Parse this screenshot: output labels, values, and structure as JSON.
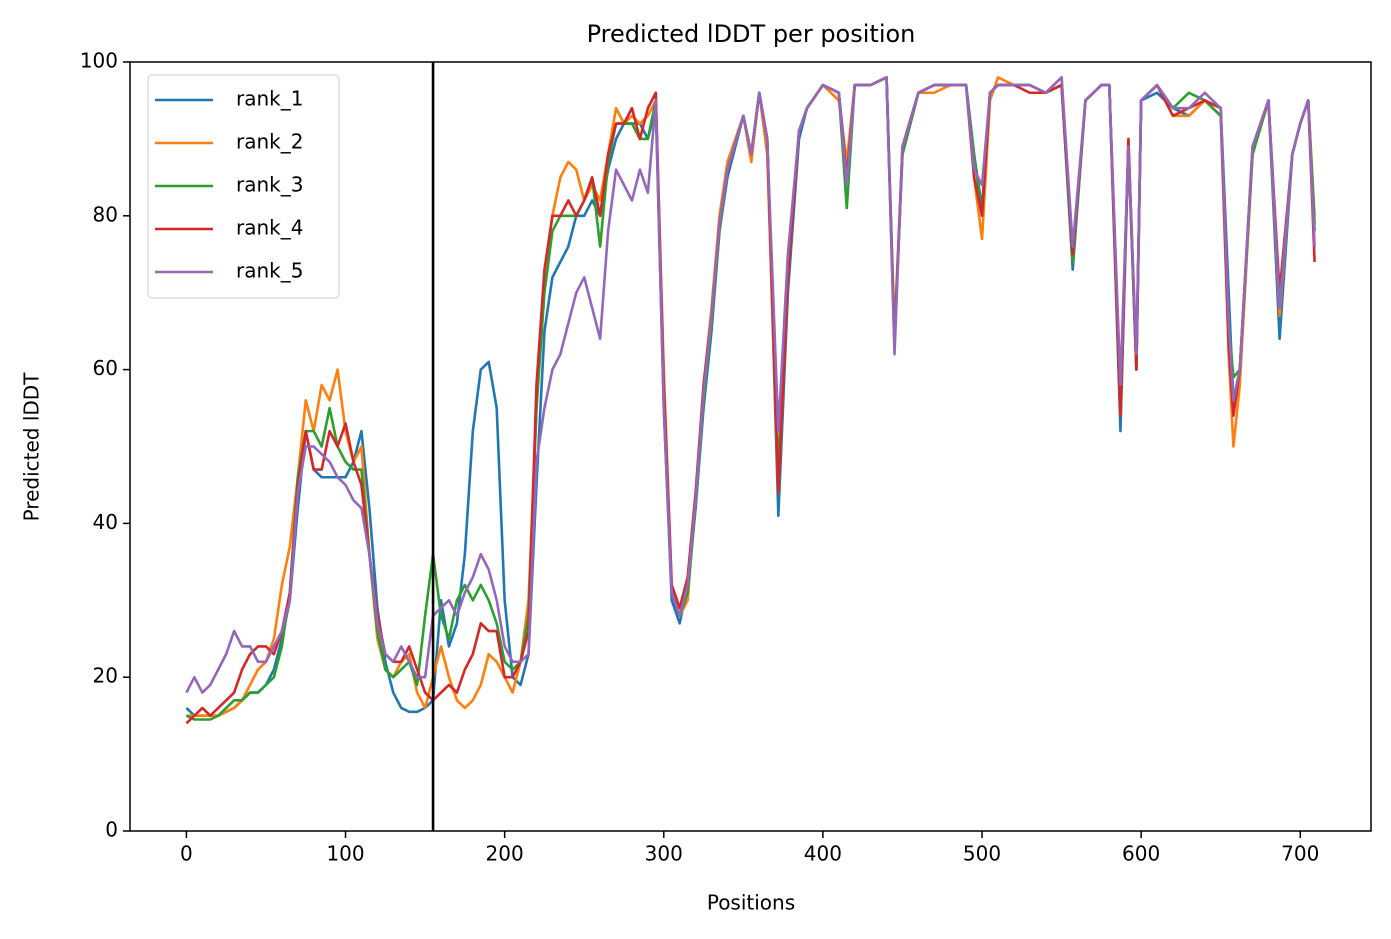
{
  "chart_data": {
    "type": "line",
    "title": "Predicted lDDT per position",
    "x_label": "Positions",
    "y_label": "Predicted lDDT",
    "x": [
      0,
      5,
      10,
      15,
      20,
      25,
      30,
      35,
      40,
      45,
      50,
      55,
      60,
      65,
      70,
      75,
      80,
      85,
      90,
      95,
      100,
      105,
      110,
      115,
      120,
      125,
      130,
      135,
      140,
      145,
      150,
      155,
      160,
      165,
      170,
      175,
      180,
      185,
      190,
      195,
      200,
      205,
      210,
      215,
      220,
      225,
      230,
      235,
      240,
      245,
      250,
      255,
      260,
      265,
      270,
      275,
      280,
      285,
      290,
      295,
      300,
      305,
      310,
      315,
      320,
      325,
      330,
      335,
      340,
      350,
      355,
      360,
      365,
      372,
      378,
      385,
      390,
      400,
      410,
      415,
      420,
      430,
      440,
      445,
      450,
      460,
      470,
      480,
      490,
      495,
      500,
      505,
      510,
      520,
      530,
      540,
      550,
      557,
      565,
      575,
      580,
      587,
      592,
      597,
      600,
      610,
      620,
      630,
      640,
      650,
      655,
      658,
      662,
      670,
      680,
      687,
      695,
      700,
      705,
      709
    ],
    "series": [
      {
        "name": "rank_1",
        "color": "#1f77b4",
        "values": [
          16,
          15,
          15,
          15,
          15,
          15.5,
          16,
          17,
          18,
          18,
          19,
          21,
          25,
          30,
          42,
          52,
          47,
          46,
          46,
          46,
          46,
          48,
          52,
          42,
          29,
          22,
          18,
          16,
          15.5,
          15.5,
          16,
          17,
          30,
          24,
          27,
          36,
          52,
          60,
          61,
          55,
          30,
          20,
          19,
          23,
          45,
          65,
          72,
          74,
          76,
          80,
          80,
          82,
          80,
          86,
          90,
          92,
          92,
          92,
          90,
          94,
          55,
          30,
          27,
          32,
          42,
          55,
          65,
          78,
          85,
          93,
          88,
          96,
          90,
          41,
          70,
          90,
          94,
          97,
          96,
          86,
          97,
          97,
          98,
          64,
          88,
          96,
          97,
          97,
          97,
          88,
          81,
          96,
          97,
          97,
          97,
          96,
          97,
          73,
          95,
          97,
          97,
          52,
          89,
          60,
          95,
          96,
          94,
          93,
          95,
          94,
          70,
          56,
          60,
          88,
          95,
          64,
          88,
          92,
          95,
          78
        ]
      },
      {
        "name": "rank_2",
        "color": "#ff7f0e",
        "values": [
          15,
          15,
          15,
          15,
          15,
          15.5,
          16,
          17,
          19,
          21,
          22,
          25,
          32,
          37,
          46,
          56,
          52,
          58,
          56,
          60,
          52,
          48,
          50,
          36,
          25,
          21,
          20,
          22,
          23,
          18,
          16,
          20,
          24,
          20,
          17,
          16,
          17,
          19,
          23,
          22,
          20,
          18,
          22,
          30,
          55,
          72,
          80,
          85,
          87,
          86,
          82,
          84,
          82,
          88,
          94,
          92,
          93,
          92,
          93,
          95,
          60,
          32,
          28,
          30,
          43,
          58,
          68,
          80,
          87,
          93,
          87,
          96,
          88,
          44,
          72,
          91,
          94,
          97,
          95,
          87,
          97,
          97,
          98,
          65,
          89,
          96,
          96,
          97,
          97,
          85,
          77,
          95,
          98,
          97,
          97,
          96,
          98,
          74,
          95,
          97,
          97,
          54,
          90,
          61,
          95,
          97,
          93,
          93,
          95,
          93,
          62,
          50,
          58,
          88,
          95,
          67,
          88,
          92,
          95,
          80
        ]
      },
      {
        "name": "rank_3",
        "color": "#2ca02c",
        "values": [
          15,
          14.5,
          14.5,
          14.5,
          15,
          16,
          17,
          17,
          18,
          18,
          19,
          20,
          24,
          31,
          46,
          52,
          52,
          50,
          55,
          50,
          48,
          47,
          47,
          36,
          26,
          21,
          20,
          21,
          22,
          19,
          28,
          36,
          28,
          25,
          30,
          32,
          30,
          32,
          30,
          27,
          22,
          21,
          22,
          28,
          55,
          70,
          78,
          80,
          80,
          80,
          82,
          85,
          76,
          87,
          92,
          92,
          92,
          90,
          90,
          95,
          56,
          31,
          28,
          31,
          42,
          56,
          66,
          78,
          86,
          93,
          88,
          96,
          90,
          47,
          72,
          91,
          94,
          97,
          96,
          81,
          97,
          97,
          98,
          64,
          88,
          96,
          97,
          97,
          97,
          88,
          80,
          96,
          97,
          97,
          97,
          96,
          97,
          74,
          95,
          97,
          97,
          56,
          89,
          60,
          95,
          97,
          94,
          96,
          95,
          93,
          66,
          59,
          60,
          88,
          95,
          68,
          88,
          92,
          95,
          79
        ]
      },
      {
        "name": "rank_4",
        "color": "#d62728",
        "values": [
          14,
          15,
          16,
          15,
          16,
          17,
          18,
          21,
          23,
          24,
          24,
          23,
          26,
          31,
          45,
          52,
          47,
          47,
          52,
          50,
          53,
          48,
          45,
          36,
          28,
          23,
          22,
          22,
          24,
          21,
          18,
          17,
          18,
          19,
          18,
          21,
          23,
          27,
          26,
          26,
          20,
          20,
          22,
          26,
          58,
          73,
          80,
          80,
          82,
          80,
          82,
          85,
          80,
          88,
          92,
          92,
          94,
          90,
          94,
          96,
          58,
          32,
          29,
          33,
          44,
          58,
          67,
          79,
          86,
          93,
          88,
          96,
          90,
          44,
          72,
          91,
          94,
          97,
          96,
          85,
          97,
          97,
          98,
          63,
          89,
          96,
          97,
          97,
          97,
          85,
          80,
          96,
          97,
          97,
          96,
          96,
          97,
          75,
          95,
          97,
          97,
          54,
          90,
          60,
          95,
          97,
          93,
          94,
          95,
          94,
          63,
          54,
          60,
          89,
          95,
          70,
          88,
          92,
          95,
          74
        ]
      },
      {
        "name": "rank_5",
        "color": "#9467bd",
        "values": [
          18,
          20,
          18,
          19,
          21,
          23,
          26,
          24,
          24,
          22,
          22,
          24,
          26,
          30,
          44,
          50,
          50,
          49,
          48,
          46,
          45,
          43,
          42,
          36,
          27,
          23,
          22,
          24,
          22,
          20,
          20,
          28,
          29,
          30,
          28,
          31,
          33,
          36,
          34,
          30,
          24,
          22,
          22,
          23,
          48,
          55,
          60,
          62,
          66,
          70,
          72,
          68,
          64,
          78,
          86,
          84,
          82,
          86,
          83,
          95,
          55,
          31,
          28,
          32,
          43,
          57,
          67,
          79,
          86,
          93,
          88,
          96,
          90,
          52,
          75,
          91,
          94,
          97,
          96,
          84,
          97,
          97,
          98,
          62,
          89,
          96,
          97,
          97,
          97,
          86,
          84,
          96,
          97,
          97,
          97,
          96,
          98,
          76,
          95,
          97,
          97,
          58,
          89,
          62,
          95,
          97,
          94,
          94,
          96,
          94,
          66,
          56,
          60,
          89,
          95,
          68,
          88,
          92,
          95,
          76
        ]
      }
    ],
    "vline": 155,
    "vline_color": "#000000",
    "xlim": [
      -35.45,
      744.45
    ],
    "xticks": [
      0,
      100,
      200,
      300,
      400,
      500,
      600,
      700
    ],
    "ylim": [
      0,
      100
    ],
    "yticks": [
      0,
      20,
      40,
      60,
      80,
      100
    ],
    "grid": false,
    "legend": "upper left"
  }
}
